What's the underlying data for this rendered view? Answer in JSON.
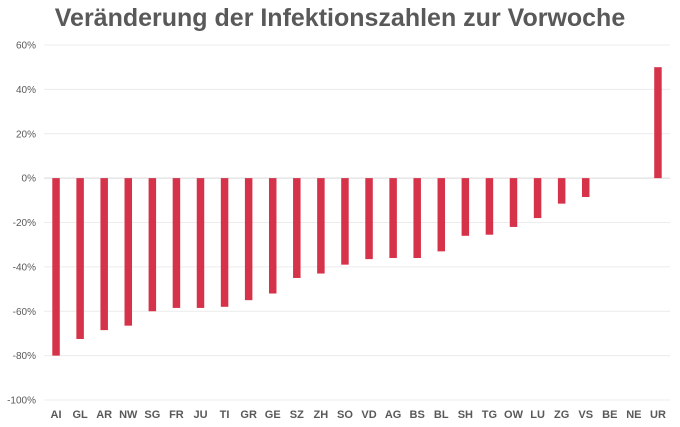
{
  "chart_data": {
    "type": "bar",
    "title": "Veränderung der Infektionszahlen zur Vorwoche",
    "xlabel": "",
    "ylabel": "",
    "ylim": [
      -100,
      60
    ],
    "yticks": [
      60,
      40,
      20,
      0,
      -20,
      -40,
      -60,
      -80,
      -100
    ],
    "ytick_labels": [
      "60%",
      "40%",
      "20%",
      "0%",
      "-20%",
      "-40%",
      "-60%",
      "-80%",
      "-100%"
    ],
    "grid": true,
    "legend": "none",
    "bar_color": "#d6334a",
    "categories": [
      "AI",
      "GL",
      "AR",
      "NW",
      "SG",
      "FR",
      "JU",
      "TI",
      "GR",
      "GE",
      "SZ",
      "ZH",
      "SO",
      "VD",
      "AG",
      "BS",
      "BL",
      "SH",
      "TG",
      "OW",
      "LU",
      "ZG",
      "VS",
      "BE",
      "NE",
      "UR"
    ],
    "values": [
      -80,
      -72.5,
      -68.5,
      -66.5,
      -60,
      -58.5,
      -58.5,
      -58,
      -55,
      -52,
      -45,
      -43,
      -39,
      -36.5,
      -36,
      -36,
      -33,
      -26,
      -25.5,
      -22,
      -18,
      -11.5,
      -8.5,
      0,
      0,
      50
    ]
  }
}
